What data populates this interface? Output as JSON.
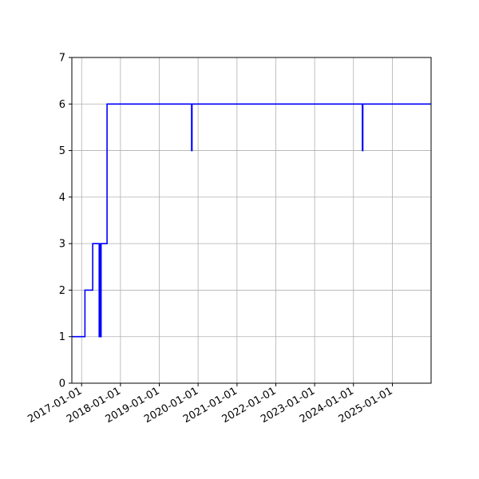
{
  "chart_data": {
    "type": "line",
    "title": "",
    "xlabel": "",
    "ylabel": "",
    "grid": true,
    "x_ticks": [
      "2017-01-01",
      "2018-01-01",
      "2019-01-01",
      "2020-01-01",
      "2021-01-01",
      "2022-01-01",
      "2023-01-01",
      "2024-01-01",
      "2025-01-01"
    ],
    "y_ticks": [
      0,
      1,
      2,
      3,
      4,
      5,
      6,
      7
    ],
    "xlim": [
      "2016-10-01",
      "2025-12-31"
    ],
    "ylim": [
      0,
      7
    ],
    "series": [
      {
        "name": "",
        "color": "#0000ff",
        "step": "post",
        "points": [
          [
            "2016-10-01",
            1
          ],
          [
            "2017-02-01",
            2
          ],
          [
            "2017-04-15",
            3
          ],
          [
            "2017-06-15",
            1
          ],
          [
            "2017-06-20",
            3
          ],
          [
            "2017-06-28",
            1
          ],
          [
            "2017-07-03",
            3
          ],
          [
            "2017-08-28",
            6
          ],
          [
            "2019-11-01",
            5
          ],
          [
            "2019-11-05",
            6
          ],
          [
            "2024-03-25",
            5
          ],
          [
            "2024-03-29",
            6
          ],
          [
            "2025-12-31",
            6
          ]
        ]
      }
    ]
  }
}
